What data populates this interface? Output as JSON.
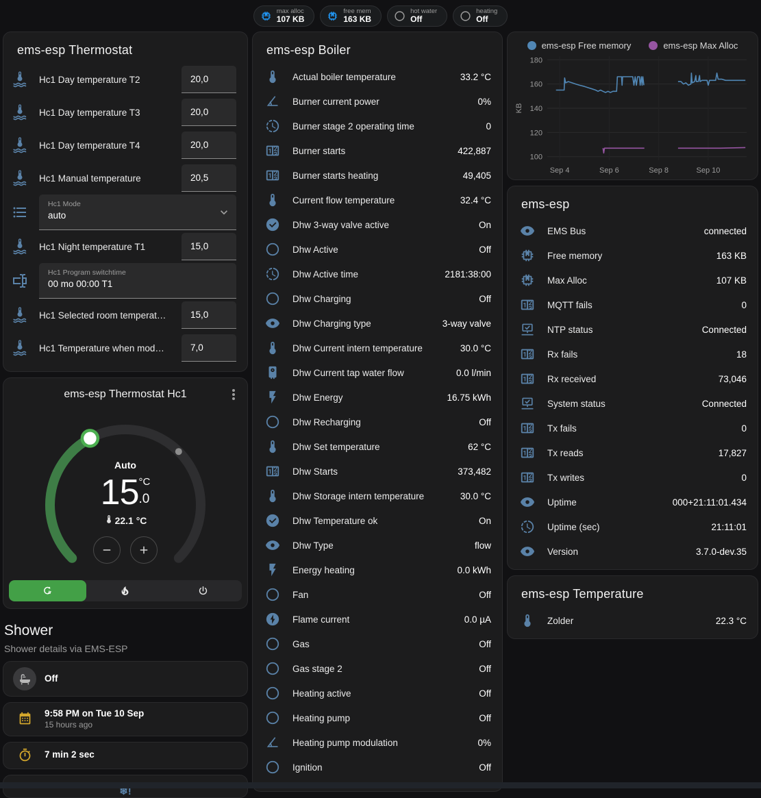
{
  "colors": {
    "icon_blue": "#5a82a8",
    "chip_blue": "#2196f3",
    "chip_gray": "#9e9e9e",
    "amber": "#d4a72c",
    "gray_icon": "#b8b8b8",
    "green": "#43a047",
    "knob_green": "#4caf50",
    "arc_green": "#3e7d46",
    "arc_track": "#2e2e30",
    "line_blue": "#5187b5",
    "line_purple": "#9655a2"
  },
  "header_chips": [
    {
      "label": "max alloc",
      "value": "107 KB",
      "icon": "memory-chip",
      "icon_color": "#2196f3"
    },
    {
      "label": "free mem",
      "value": "163 KB",
      "icon": "memory-chip",
      "icon_color": "#2196f3"
    },
    {
      "label": "hot water",
      "value": "Off",
      "icon": "circle-outline",
      "icon_color": "#9e9e9e"
    },
    {
      "label": "heating",
      "value": "Off",
      "icon": "circle-outline",
      "icon_color": "#9e9e9e"
    }
  ],
  "thermostat_card": {
    "title": "ems-esp Thermostat",
    "rows": [
      {
        "type": "number",
        "icon": "thermometer-water",
        "label": "Hc1 Day temperature T2",
        "value": "20,0"
      },
      {
        "type": "number",
        "icon": "thermometer-water",
        "label": "Hc1 Day temperature T3",
        "value": "20,0"
      },
      {
        "type": "number",
        "icon": "thermometer-water",
        "label": "Hc1 Day temperature T4",
        "value": "20,0"
      },
      {
        "type": "number",
        "icon": "thermometer-water",
        "label": "Hc1 Manual temperature",
        "value": "20,5"
      },
      {
        "type": "select",
        "icon": "format-list",
        "label": "Hc1 Mode",
        "value": "auto"
      },
      {
        "type": "number",
        "icon": "thermometer-water",
        "label": "Hc1 Night temperature T1",
        "value": "15,0"
      },
      {
        "type": "text",
        "icon": "form-textbox",
        "label": "Hc1 Program switchtime",
        "value": "00 mo 00:00 T1"
      },
      {
        "type": "number",
        "icon": "thermometer-water",
        "label": "Hc1 Selected room temperat…",
        "value": "15,0"
      },
      {
        "type": "number",
        "icon": "thermometer-water",
        "label": "Hc1 Temperature when mod…",
        "value": "7,0"
      }
    ]
  },
  "dial_card": {
    "title": "ems-esp Thermostat Hc1",
    "mode_label": "Auto",
    "target_int": "15",
    "target_unit": "°C",
    "target_dec": ".0",
    "current_temp": "22.1 °C",
    "modes": [
      {
        "icon": "thermostat-auto",
        "active": true
      },
      {
        "icon": "fire",
        "active": false
      },
      {
        "icon": "power",
        "active": false
      }
    ]
  },
  "shower_section": {
    "title": "Shower",
    "subtitle": "Shower details via EMS-ESP",
    "cards": [
      {
        "icon": "bathtub",
        "icon_style": "bubble",
        "icon_color": "#b8b8b8",
        "primary": "Off",
        "secondary": ""
      },
      {
        "icon": "calendar",
        "icon_style": "plain",
        "icon_color": "#d4a72c",
        "primary": "9:58 PM on Tue 10 Sep",
        "secondary": "15 hours ago"
      },
      {
        "icon": "timer",
        "icon_style": "plain",
        "icon_color": "#d4a72c",
        "primary": "7 min 2 sec",
        "secondary": ""
      }
    ],
    "frost_icon_text": "❄!"
  },
  "boiler_card": {
    "title": "ems-esp Boiler",
    "rows": [
      {
        "icon": "thermometer",
        "label": "Actual boiler temperature",
        "value": "33.2 °C"
      },
      {
        "icon": "angle-acute",
        "label": "Burner current power",
        "value": "0%"
      },
      {
        "icon": "progress-clock",
        "label": "Burner stage 2 operating time",
        "value": "0"
      },
      {
        "icon": "counter",
        "label": "Burner starts",
        "value": "422,887"
      },
      {
        "icon": "counter",
        "label": "Burner starts heating",
        "value": "49,405"
      },
      {
        "icon": "thermometer",
        "label": "Current flow temperature",
        "value": "32.4 °C"
      },
      {
        "icon": "check-circle",
        "label": "Dhw 3-way valve active",
        "value": "On"
      },
      {
        "icon": "circle-outline",
        "label": "Dhw Active",
        "value": "Off"
      },
      {
        "icon": "progress-clock",
        "label": "Dhw Active time",
        "value": "2181:38:00"
      },
      {
        "icon": "circle-outline",
        "label": "Dhw Charging",
        "value": "Off"
      },
      {
        "icon": "eye",
        "label": "Dhw Charging type",
        "value": "3-way valve"
      },
      {
        "icon": "thermometer",
        "label": "Dhw Current intern temperature",
        "value": "30.0 °C"
      },
      {
        "icon": "water-boiler",
        "label": "Dhw Current tap water flow",
        "value": "0.0 l/min"
      },
      {
        "icon": "flash",
        "label": "Dhw Energy",
        "value": "16.75 kWh"
      },
      {
        "icon": "circle-outline",
        "label": "Dhw Recharging",
        "value": "Off"
      },
      {
        "icon": "thermometer",
        "label": "Dhw Set temperature",
        "value": "62 °C"
      },
      {
        "icon": "counter",
        "label": "Dhw Starts",
        "value": "373,482"
      },
      {
        "icon": "thermometer",
        "label": "Dhw Storage intern temperature",
        "value": "30.0 °C"
      },
      {
        "icon": "check-circle",
        "label": "Dhw Temperature ok",
        "value": "On"
      },
      {
        "icon": "eye",
        "label": "Dhw Type",
        "value": "flow"
      },
      {
        "icon": "flash",
        "label": "Energy heating",
        "value": "0.0 kWh"
      },
      {
        "icon": "circle-outline",
        "label": "Fan",
        "value": "Off"
      },
      {
        "icon": "flash-circle",
        "label": "Flame current",
        "value": "0.0 µA"
      },
      {
        "icon": "circle-outline",
        "label": "Gas",
        "value": "Off"
      },
      {
        "icon": "circle-outline",
        "label": "Gas stage 2",
        "value": "Off"
      },
      {
        "icon": "circle-outline",
        "label": "Heating active",
        "value": "Off"
      },
      {
        "icon": "circle-outline",
        "label": "Heating pump",
        "value": "Off"
      },
      {
        "icon": "angle-acute",
        "label": "Heating pump modulation",
        "value": "0%"
      },
      {
        "icon": "circle-outline",
        "label": "Ignition",
        "value": "Off"
      }
    ]
  },
  "chart_data": {
    "type": "line",
    "title": "",
    "xlabel": "",
    "ylabel": "KB",
    "ylim": [
      97,
      183
    ],
    "yticks": [
      100,
      120,
      140,
      160,
      180
    ],
    "xlim": [
      3.5,
      11.55
    ],
    "xticks": [
      {
        "pos": 4,
        "label": "Sep 4"
      },
      {
        "pos": 6,
        "label": "Sep 6"
      },
      {
        "pos": 8,
        "label": "Sep 8"
      },
      {
        "pos": 10,
        "label": "Sep 10"
      }
    ],
    "grid": true,
    "legend_position": "top",
    "series": [
      {
        "name": "ems-esp Free memory",
        "color": "#5187b5",
        "segments": [
          [
            [
              3.85,
              155
            ],
            [
              4.18,
              155
            ],
            [
              4.2,
              165
            ],
            [
              4.24,
              161
            ],
            [
              4.35,
              162
            ],
            [
              4.5,
              161
            ],
            [
              4.65,
              160
            ],
            [
              4.8,
              159
            ],
            [
              5.0,
              158
            ],
            [
              5.15,
              157
            ],
            [
              5.3,
              156
            ],
            [
              5.45,
              155
            ],
            [
              5.55,
              154
            ],
            [
              5.65,
              155
            ],
            [
              5.75,
              154
            ],
            [
              5.85,
              153
            ],
            [
              5.95,
              154
            ],
            [
              6.05,
              153
            ],
            [
              6.15,
              154
            ],
            [
              6.3,
              154
            ],
            [
              6.33,
              166
            ],
            [
              6.5,
              166
            ],
            [
              6.52,
              159
            ],
            [
              6.54,
              166
            ],
            [
              6.95,
              166
            ],
            [
              7.0,
              159
            ],
            [
              7.05,
              166
            ],
            [
              7.1,
              159
            ],
            [
              7.15,
              166
            ],
            [
              7.22,
              166
            ],
            [
              7.25,
              159
            ],
            [
              7.3,
              166
            ],
            [
              7.33,
              159
            ],
            [
              7.36,
              166
            ],
            [
              7.4,
              159
            ]
          ],
          [
            [
              8.78,
              162
            ],
            [
              8.9,
              162
            ],
            [
              8.95,
              161
            ],
            [
              9.0,
              160
            ],
            [
              9.1,
              161
            ],
            [
              9.15,
              160
            ],
            [
              9.2,
              159
            ],
            [
              9.3,
              160
            ],
            [
              9.32,
              169
            ],
            [
              9.35,
              161
            ],
            [
              9.45,
              162
            ],
            [
              9.5,
              167
            ],
            [
              9.52,
              162
            ],
            [
              9.6,
              162
            ],
            [
              9.65,
              167
            ],
            [
              9.67,
              162
            ],
            [
              9.75,
              163
            ],
            [
              9.95,
              163
            ],
            [
              10.0,
              159
            ],
            [
              10.05,
              163
            ],
            [
              10.3,
              163
            ],
            [
              10.35,
              169
            ],
            [
              10.4,
              164
            ],
            [
              10.55,
              164
            ],
            [
              10.7,
              163
            ],
            [
              11.5,
              163
            ]
          ]
        ]
      },
      {
        "name": "ems-esp Max Alloc",
        "color": "#9655a2",
        "segments": [
          [
            [
              5.75,
              107
            ],
            [
              5.78,
              103
            ],
            [
              5.81,
              107
            ],
            [
              7.42,
              107
            ]
          ],
          [
            [
              8.78,
              107
            ],
            [
              10.5,
              107
            ],
            [
              11.5,
              107.5
            ]
          ]
        ]
      }
    ]
  },
  "emsesp_card": {
    "title": "ems-esp",
    "rows": [
      {
        "icon": "eye",
        "label": "EMS Bus",
        "value": "connected"
      },
      {
        "icon": "memory-chip",
        "label": "Free memory",
        "value": "163 KB"
      },
      {
        "icon": "memory-chip",
        "label": "Max Alloc",
        "value": "107 KB"
      },
      {
        "icon": "counter",
        "label": "MQTT fails",
        "value": "0"
      },
      {
        "icon": "network-check",
        "label": "NTP status",
        "value": "Connected"
      },
      {
        "icon": "counter",
        "label": "Rx fails",
        "value": "18"
      },
      {
        "icon": "counter",
        "label": "Rx received",
        "value": "73,046"
      },
      {
        "icon": "network-check",
        "label": "System status",
        "value": "Connected"
      },
      {
        "icon": "counter",
        "label": "Tx fails",
        "value": "0"
      },
      {
        "icon": "counter",
        "label": "Tx reads",
        "value": "17,827"
      },
      {
        "icon": "counter",
        "label": "Tx writes",
        "value": "0"
      },
      {
        "icon": "eye",
        "label": "Uptime",
        "value": "000+21:11:01.434"
      },
      {
        "icon": "progress-clock",
        "label": "Uptime (sec)",
        "value": "21:11:01"
      },
      {
        "icon": "eye",
        "label": "Version",
        "value": "3.7.0-dev.35"
      }
    ]
  },
  "temperature_card": {
    "title": "ems-esp Temperature",
    "rows": [
      {
        "icon": "thermometer",
        "label": "Zolder",
        "value": "22.3 °C"
      }
    ]
  }
}
